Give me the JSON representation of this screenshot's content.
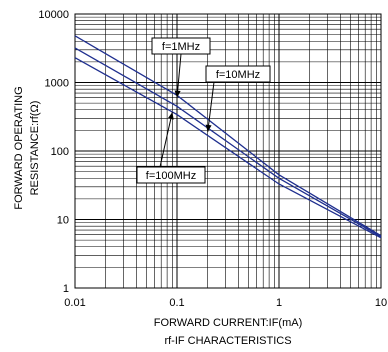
{
  "chart_data": {
    "type": "line",
    "title": "rf-IF CHARACTERISTICS",
    "xlabel": "FORWARD CURRENT:IF(mA)",
    "ylabel_line1": "FORWARD OPERATING",
    "ylabel_line2": "RESISTANCE:rf(Ω)",
    "xscale": "log",
    "yscale": "log",
    "xlim": [
      0.01,
      10
    ],
    "ylim": [
      1,
      10000
    ],
    "grid": true,
    "x_ticks": [
      {
        "value": 0.01,
        "label": "0.01"
      },
      {
        "value": 0.1,
        "label": "0.1"
      },
      {
        "value": 1,
        "label": "1"
      },
      {
        "value": 10,
        "label": "10"
      }
    ],
    "y_ticks": [
      {
        "value": 1,
        "label": "1"
      },
      {
        "value": 10,
        "label": "10"
      },
      {
        "value": 100,
        "label": "100"
      },
      {
        "value": 1000,
        "label": "1000"
      },
      {
        "value": 10000,
        "label": "10000"
      }
    ],
    "series": [
      {
        "name": "f=1MHz",
        "x": [
          0.01,
          0.1,
          1,
          10
        ],
        "y": [
          4800,
          650,
          45,
          5.8
        ]
      },
      {
        "name": "f=10MHz",
        "x": [
          0.01,
          0.1,
          1,
          10
        ],
        "y": [
          3200,
          450,
          40,
          5.6
        ]
      },
      {
        "name": "f=100MHz",
        "x": [
          0.01,
          0.1,
          1,
          10
        ],
        "y": [
          2300,
          340,
          33,
          5.4
        ]
      }
    ],
    "annotations": [
      {
        "text": "f=1MHz",
        "target": {
          "x": 0.1,
          "y": 600
        }
      },
      {
        "text": "f=10MHz",
        "target": {
          "x": 0.2,
          "y": 190
        }
      },
      {
        "text": "f=100MHz",
        "target": {
          "x": 0.09,
          "y": 370
        }
      }
    ]
  }
}
